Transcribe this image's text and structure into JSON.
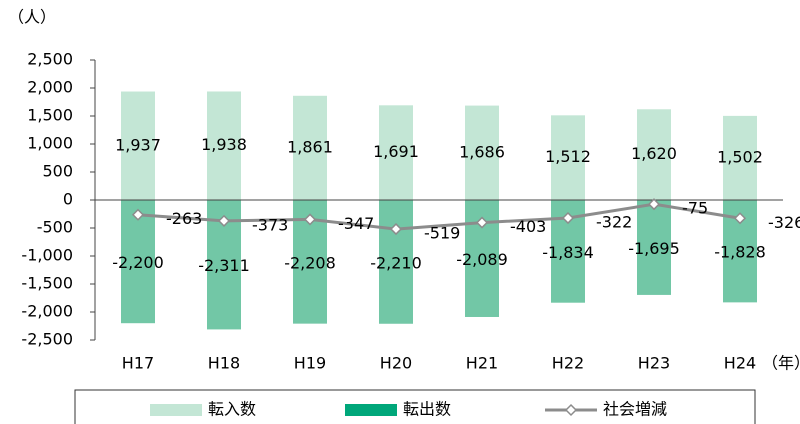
{
  "chart_data": {
    "type": "bar-line",
    "y_unit": "（人）",
    "x_unit": "（年）",
    "categories": [
      "H17",
      "H18",
      "H19",
      "H20",
      "H21",
      "H22",
      "H23",
      "H24"
    ],
    "series": [
      {
        "name": "転入数",
        "type": "bar",
        "color": "#c3e6d5",
        "values": [
          1937,
          1938,
          1861,
          1691,
          1686,
          1512,
          1620,
          1502
        ],
        "value_labels": [
          "1,937",
          "1,938",
          "1,861",
          "1,691",
          "1,686",
          "1,512",
          "1,620",
          "1,502"
        ]
      },
      {
        "name": "転出数",
        "type": "bar",
        "color": "#72c7a6",
        "values": [
          -2200,
          -2311,
          -2208,
          -2210,
          -2089,
          -1834,
          -1695,
          -1828
        ],
        "value_labels": [
          "-2,200",
          "-2,311",
          "-2,208",
          "-2,210",
          "-2,089",
          "-1,834",
          "-1,695",
          "-1,828"
        ]
      },
      {
        "name": "社会増減",
        "type": "line",
        "color": "#8c8c8c",
        "values": [
          -263,
          -373,
          -347,
          -519,
          -403,
          -322,
          -75,
          -326
        ]
      }
    ],
    "ylim": [
      -2500,
      2500
    ],
    "yticks": [
      {
        "value": -2500,
        "label": "-2,500"
      },
      {
        "value": -2000,
        "label": "-2,000"
      },
      {
        "value": -1500,
        "label": "-1,500"
      },
      {
        "value": -1000,
        "label": "-1,000"
      },
      -500,
      0,
      500,
      {
        "value": 1000,
        "label": "1,000"
      },
      {
        "value": 1500,
        "label": "1,500"
      },
      {
        "value": 2000,
        "label": "2,000"
      },
      {
        "value": 2500,
        "label": "2,500"
      }
    ]
  }
}
